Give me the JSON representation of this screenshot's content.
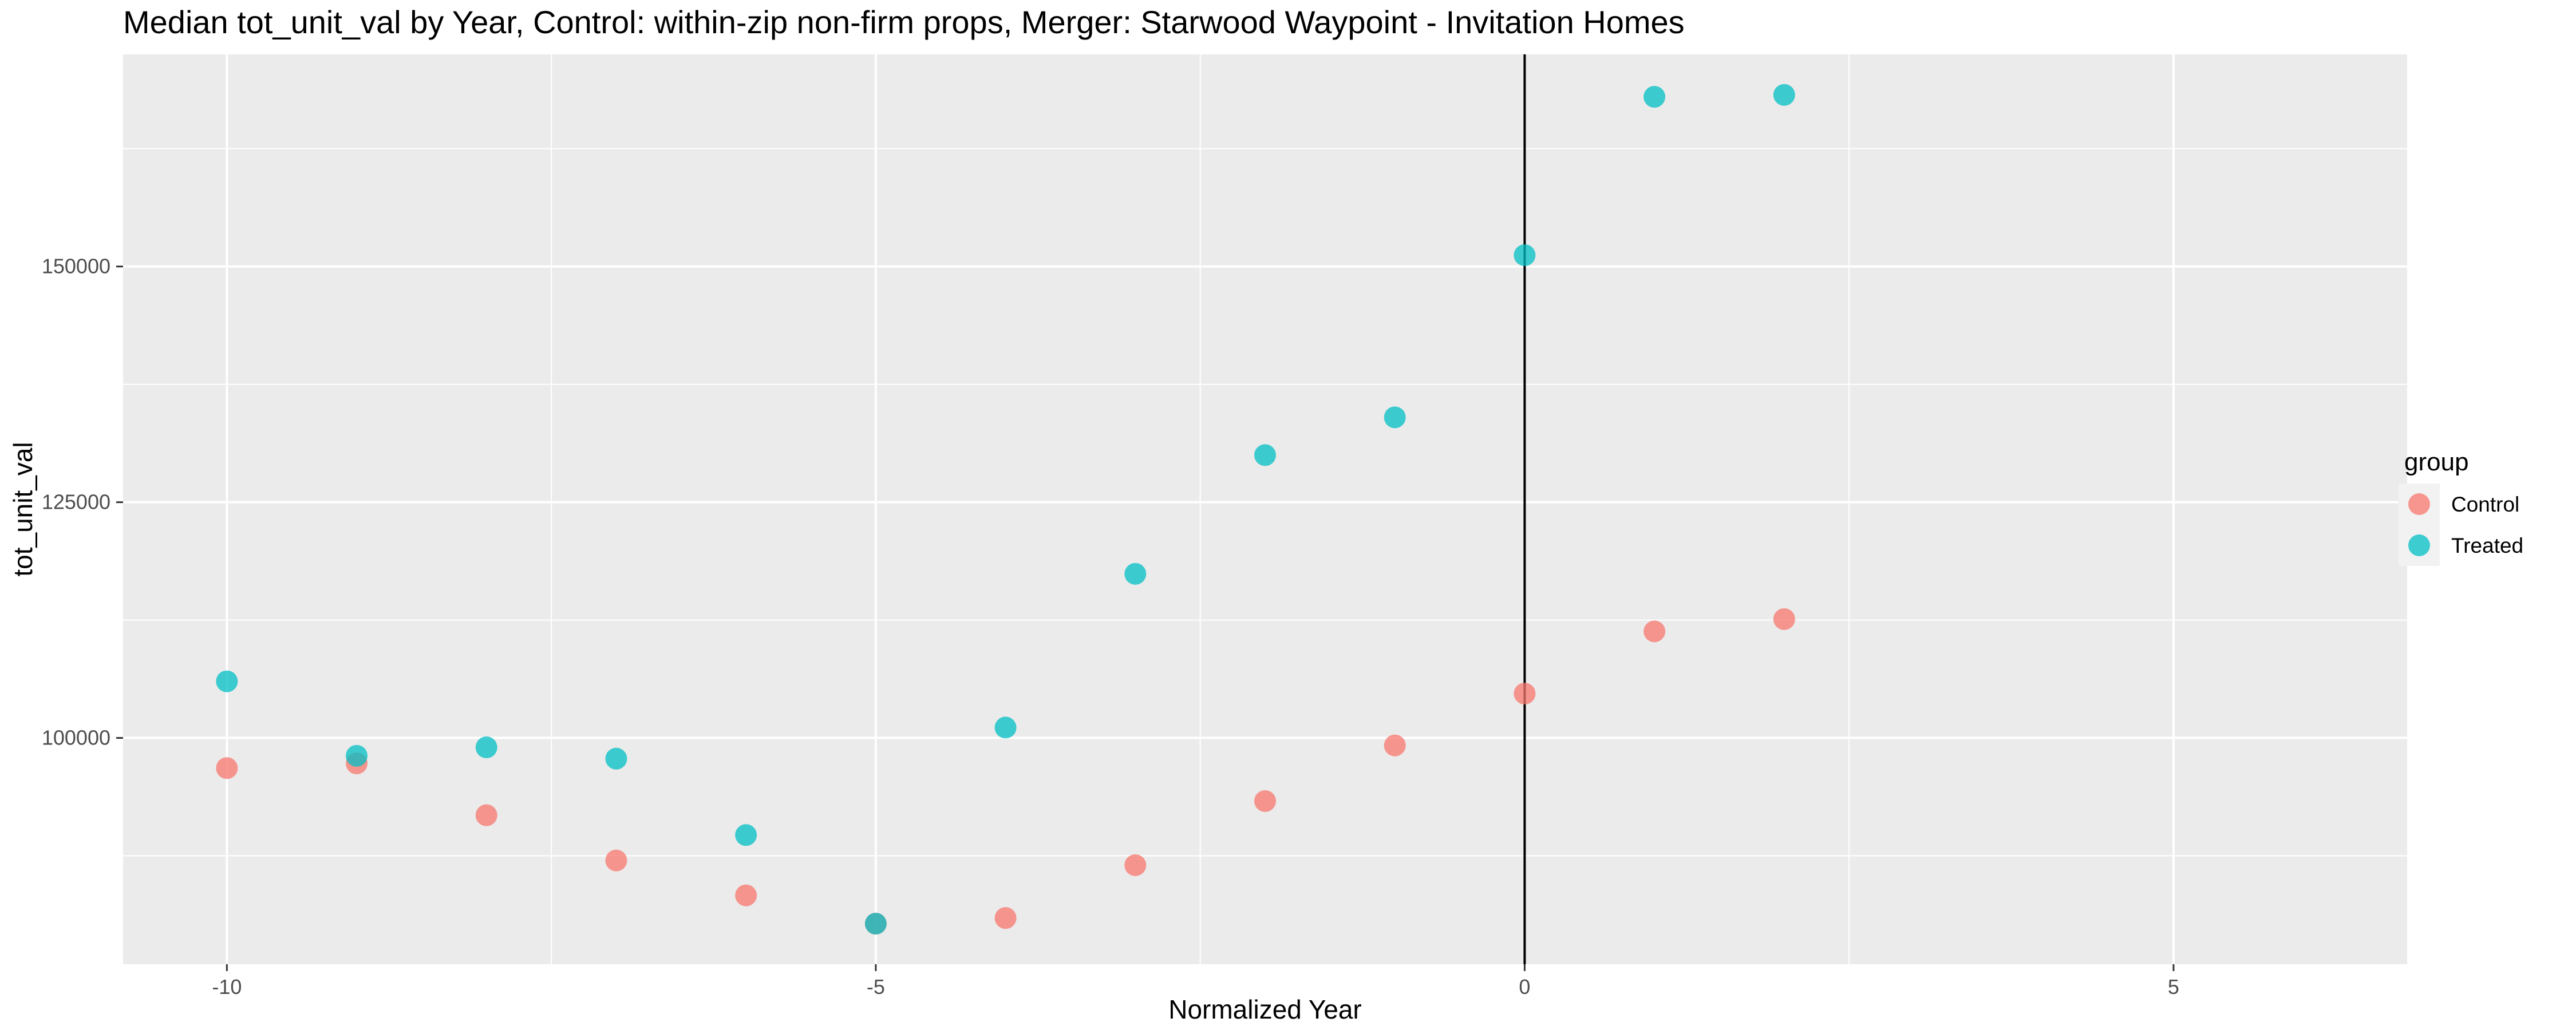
{
  "chart_data": {
    "type": "scatter",
    "title": "Median tot_unit_val by Year, Control: within-zip non-firm props, Merger: Starwood Waypoint - Invitation Homes",
    "xlabel": "Normalized Year",
    "ylabel": "tot_unit_val",
    "xlim": [
      -10.8,
      6.8
    ],
    "ylim": [
      76000,
      172500
    ],
    "x_ticks": [
      -10,
      -5,
      0,
      5
    ],
    "x_tick_labels": [
      "-10",
      "-5",
      "0",
      "5"
    ],
    "y_ticks": [
      100000,
      125000,
      150000
    ],
    "y_tick_labels": [
      "100000",
      "125000",
      "150000"
    ],
    "vline_x": 0,
    "grid": true,
    "legend": {
      "title": "group",
      "position": "right"
    },
    "series": [
      {
        "name": "Control",
        "color": "#f8766d",
        "points": [
          {
            "x": -10,
            "y": 96800
          },
          {
            "x": -9,
            "y": 97300
          },
          {
            "x": -8,
            "y": 91800
          },
          {
            "x": -7,
            "y": 87000
          },
          {
            "x": -6,
            "y": 83300
          },
          {
            "x": -5,
            "y": 80300
          },
          {
            "x": -4,
            "y": 80900
          },
          {
            "x": -3,
            "y": 86500
          },
          {
            "x": -2,
            "y": 93300
          },
          {
            "x": -1,
            "y": 99200
          },
          {
            "x": 0,
            "y": 104700
          },
          {
            "x": 1,
            "y": 111300
          },
          {
            "x": 2,
            "y": 112600
          }
        ]
      },
      {
        "name": "Treated",
        "color": "#00bfc4",
        "points": [
          {
            "x": -10,
            "y": 106000
          },
          {
            "x": -9,
            "y": 98100
          },
          {
            "x": -8,
            "y": 99000
          },
          {
            "x": -7,
            "y": 97800
          },
          {
            "x": -6,
            "y": 89700
          },
          {
            "x": -5,
            "y": 80300
          },
          {
            "x": -4,
            "y": 101100
          },
          {
            "x": -3,
            "y": 117400
          },
          {
            "x": -2,
            "y": 130000
          },
          {
            "x": -1,
            "y": 134000
          },
          {
            "x": 0,
            "y": 151200
          },
          {
            "x": 1,
            "y": 168000
          },
          {
            "x": 2,
            "y": 168200
          }
        ]
      }
    ]
  }
}
